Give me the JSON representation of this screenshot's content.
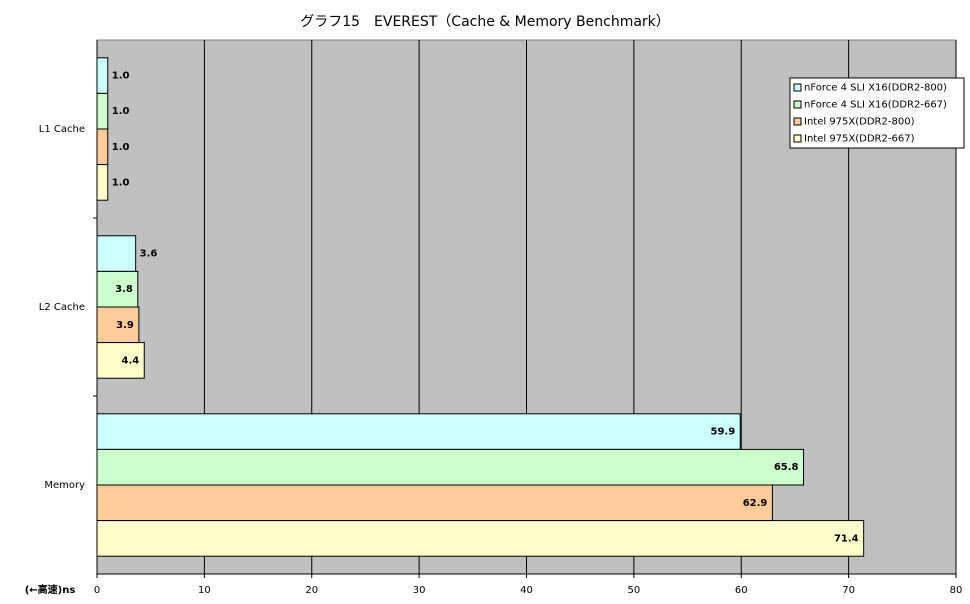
{
  "chart_data": {
    "type": "barh",
    "title": "グラフ15　EVEREST（Cache & Memory Benchmark）",
    "xlabel": "(←高速)ns",
    "categories": [
      "L1 Cache",
      "L2 Cache",
      "Memory"
    ],
    "series": [
      {
        "name": "nForce 4 SLI X16(DDR2-800)",
        "color": "#ccffff",
        "values": [
          1.0,
          3.6,
          59.9
        ],
        "value_labels": [
          "1.0",
          "3.6",
          "59.9"
        ]
      },
      {
        "name": "nForce 4 SLI X16(DDR2-667)",
        "color": "#ccffcc",
        "values": [
          1.0,
          3.8,
          65.8
        ],
        "value_labels": [
          "1.0",
          "3.8",
          "65.8"
        ]
      },
      {
        "name": "Intel 975X(DDR2-800)",
        "color": "#ffcc99",
        "values": [
          1.0,
          3.9,
          62.9
        ],
        "value_labels": [
          "1.0",
          "3.9",
          "62.9"
        ]
      },
      {
        "name": "Intel 975X(DDR2-667)",
        "color": "#ffffcc",
        "values": [
          1.0,
          4.4,
          71.4
        ],
        "value_labels": [
          "1.0",
          "4.4",
          "71.4"
        ]
      }
    ],
    "xlim": [
      0,
      80
    ],
    "xticks": [
      0,
      10,
      20,
      30,
      40,
      50,
      60,
      70,
      80
    ],
    "grid": true,
    "legend": "upper right",
    "plot_background": "#c0c0c0"
  }
}
